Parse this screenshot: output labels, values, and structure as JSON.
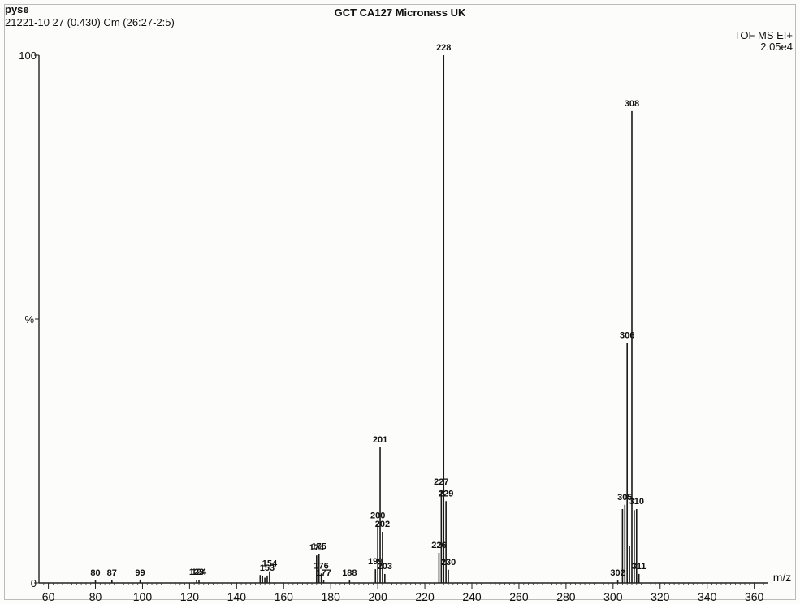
{
  "header": {
    "sample_name": "pyse",
    "scan_info": "21221-10 27 (0.430) Cm (26:27-2:5)",
    "title": "GCT CA127 Micronass UK",
    "instrument": "TOF MS EI+",
    "scale": "2.05e4"
  },
  "chart_data": {
    "type": "bar",
    "title": "GCT CA127 Micronass UK",
    "xlabel": "m/z",
    "ylabel": "%",
    "xlim": [
      56,
      366
    ],
    "ylim": [
      0,
      100
    ],
    "x_ticks": [
      60,
      80,
      100,
      120,
      140,
      160,
      180,
      200,
      220,
      240,
      260,
      280,
      300,
      320,
      340,
      360
    ],
    "y_ticks": [
      0,
      100
    ],
    "peaks": [
      {
        "mz": 80,
        "intensity": 0.5,
        "label": "80"
      },
      {
        "mz": 87,
        "intensity": 0.5,
        "label": "87"
      },
      {
        "mz": 99,
        "intensity": 0.5,
        "label": "99"
      },
      {
        "mz": 123,
        "intensity": 0.6,
        "label": "123"
      },
      {
        "mz": 124,
        "intensity": 0.6,
        "label": "124"
      },
      {
        "mz": 150,
        "intensity": 1.5
      },
      {
        "mz": 151,
        "intensity": 1.3
      },
      {
        "mz": 152,
        "intensity": 1.0
      },
      {
        "mz": 153,
        "intensity": 1.4,
        "label": "153"
      },
      {
        "mz": 154,
        "intensity": 2.2,
        "label": "154"
      },
      {
        "mz": 174,
        "intensity": 5.2,
        "label": "174"
      },
      {
        "mz": 175,
        "intensity": 5.5,
        "label": "175"
      },
      {
        "mz": 176,
        "intensity": 1.8,
        "label": "176"
      },
      {
        "mz": 177,
        "intensity": 0.5,
        "label": "177"
      },
      {
        "mz": 188,
        "intensity": 0.5,
        "label": "188"
      },
      {
        "mz": 199,
        "intensity": 2.6,
        "label": "199"
      },
      {
        "mz": 200,
        "intensity": 11.3,
        "label": "200"
      },
      {
        "mz": 201,
        "intensity": 25.7,
        "label": "201"
      },
      {
        "mz": 202,
        "intensity": 9.7,
        "label": "202"
      },
      {
        "mz": 203,
        "intensity": 1.7,
        "label": "203"
      },
      {
        "mz": 226,
        "intensity": 5.7,
        "label": "226"
      },
      {
        "mz": 227,
        "intensity": 17.7,
        "label": "227"
      },
      {
        "mz": 228,
        "intensity": 100,
        "label": "228"
      },
      {
        "mz": 229,
        "intensity": 15.5,
        "label": "229"
      },
      {
        "mz": 230,
        "intensity": 2.5,
        "label": "230"
      },
      {
        "mz": 302,
        "intensity": 0.5,
        "label": "302"
      },
      {
        "mz": 304,
        "intensity": 14.0
      },
      {
        "mz": 305,
        "intensity": 14.8,
        "label": "305"
      },
      {
        "mz": 306,
        "intensity": 45.5,
        "label": "306"
      },
      {
        "mz": 307,
        "intensity": 7.0
      },
      {
        "mz": 308,
        "intensity": 89.4,
        "label": "308"
      },
      {
        "mz": 309,
        "intensity": 13.8
      },
      {
        "mz": 310,
        "intensity": 14.0,
        "label": "310"
      },
      {
        "mz": 311,
        "intensity": 1.7,
        "label": "311"
      }
    ]
  }
}
